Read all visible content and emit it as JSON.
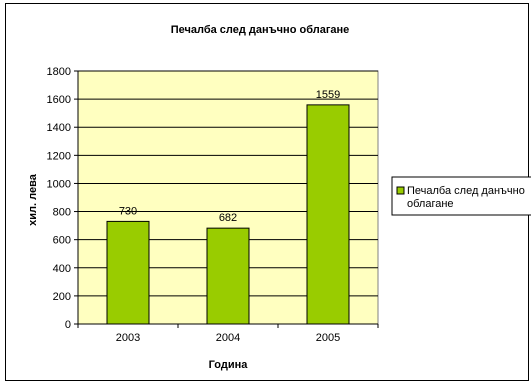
{
  "chart_data": {
    "type": "bar",
    "title": "Печалба след данъчно облагане",
    "xlabel": "Година",
    "ylabel": "хил. лева",
    "categories": [
      "2003",
      "2004",
      "2005"
    ],
    "series": [
      {
        "name": "Печалба след данъчно облагане",
        "values": [
          730,
          682,
          1559
        ]
      }
    ],
    "data_labels": [
      "730",
      "682",
      "1559"
    ],
    "ylim": [
      0,
      1800
    ],
    "yticks": [
      "0",
      "200",
      "400",
      "600",
      "800",
      "1000",
      "1200",
      "1400",
      "1600",
      "1800"
    ],
    "grid": true,
    "legend_position": "right",
    "colors": {
      "plot_background": "#FFFFC0",
      "bar_fill": "#99CC00",
      "bar_stroke": "#000000",
      "gridline": "#000000"
    }
  }
}
